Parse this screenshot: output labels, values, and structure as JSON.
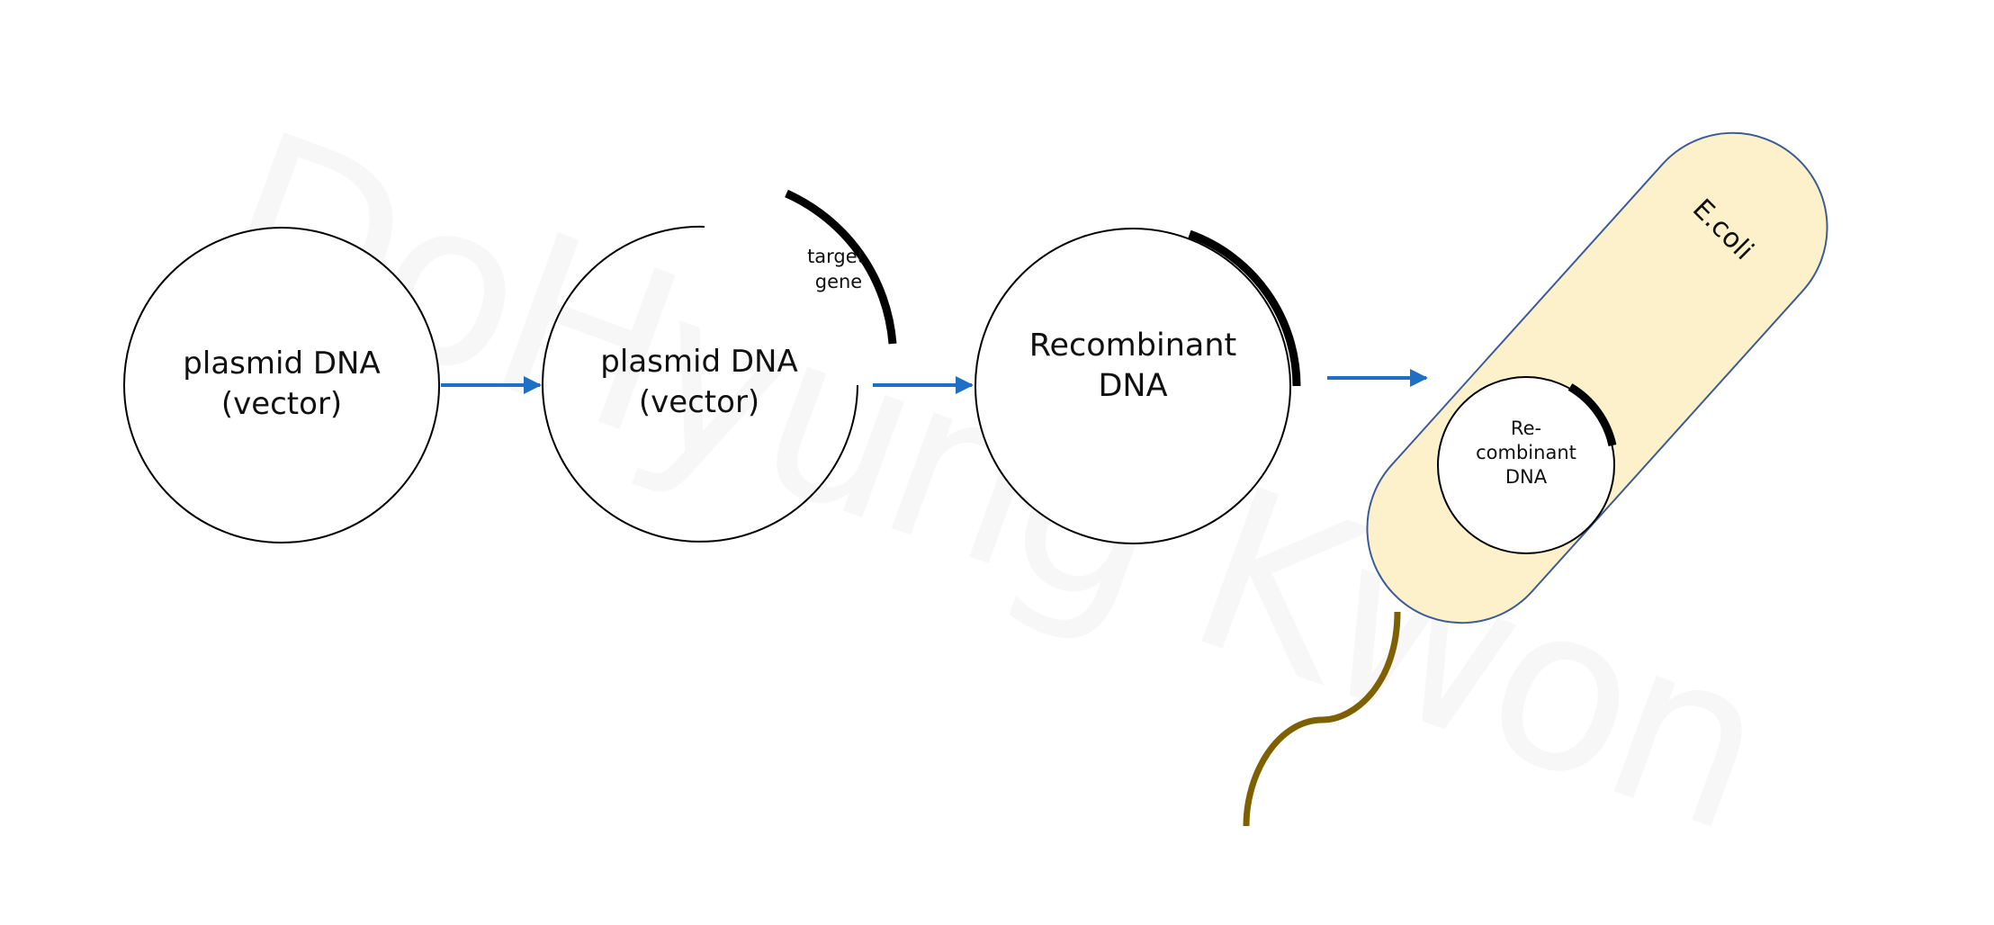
{
  "watermark": "DoHyung Kwon",
  "steps": [
    {
      "line1": "plasmid DNA",
      "line2": "(vector)"
    },
    {
      "line1": "plasmid DNA",
      "line2": "(vector)",
      "gene_line1": "target",
      "gene_line2": "gene"
    },
    {
      "line1": "Recombinant",
      "line2": "DNA"
    }
  ],
  "ecoli": {
    "label": "E.coli",
    "inner_line1": "Re-",
    "inner_line2": "combinant",
    "inner_line3": "DNA"
  },
  "colors": {
    "arrow": "#1f6fc6",
    "cell_fill": "#fcf1cb",
    "cell_stroke": "#3d5c95",
    "flagellum": "#7f6000",
    "gene": "#000000"
  }
}
